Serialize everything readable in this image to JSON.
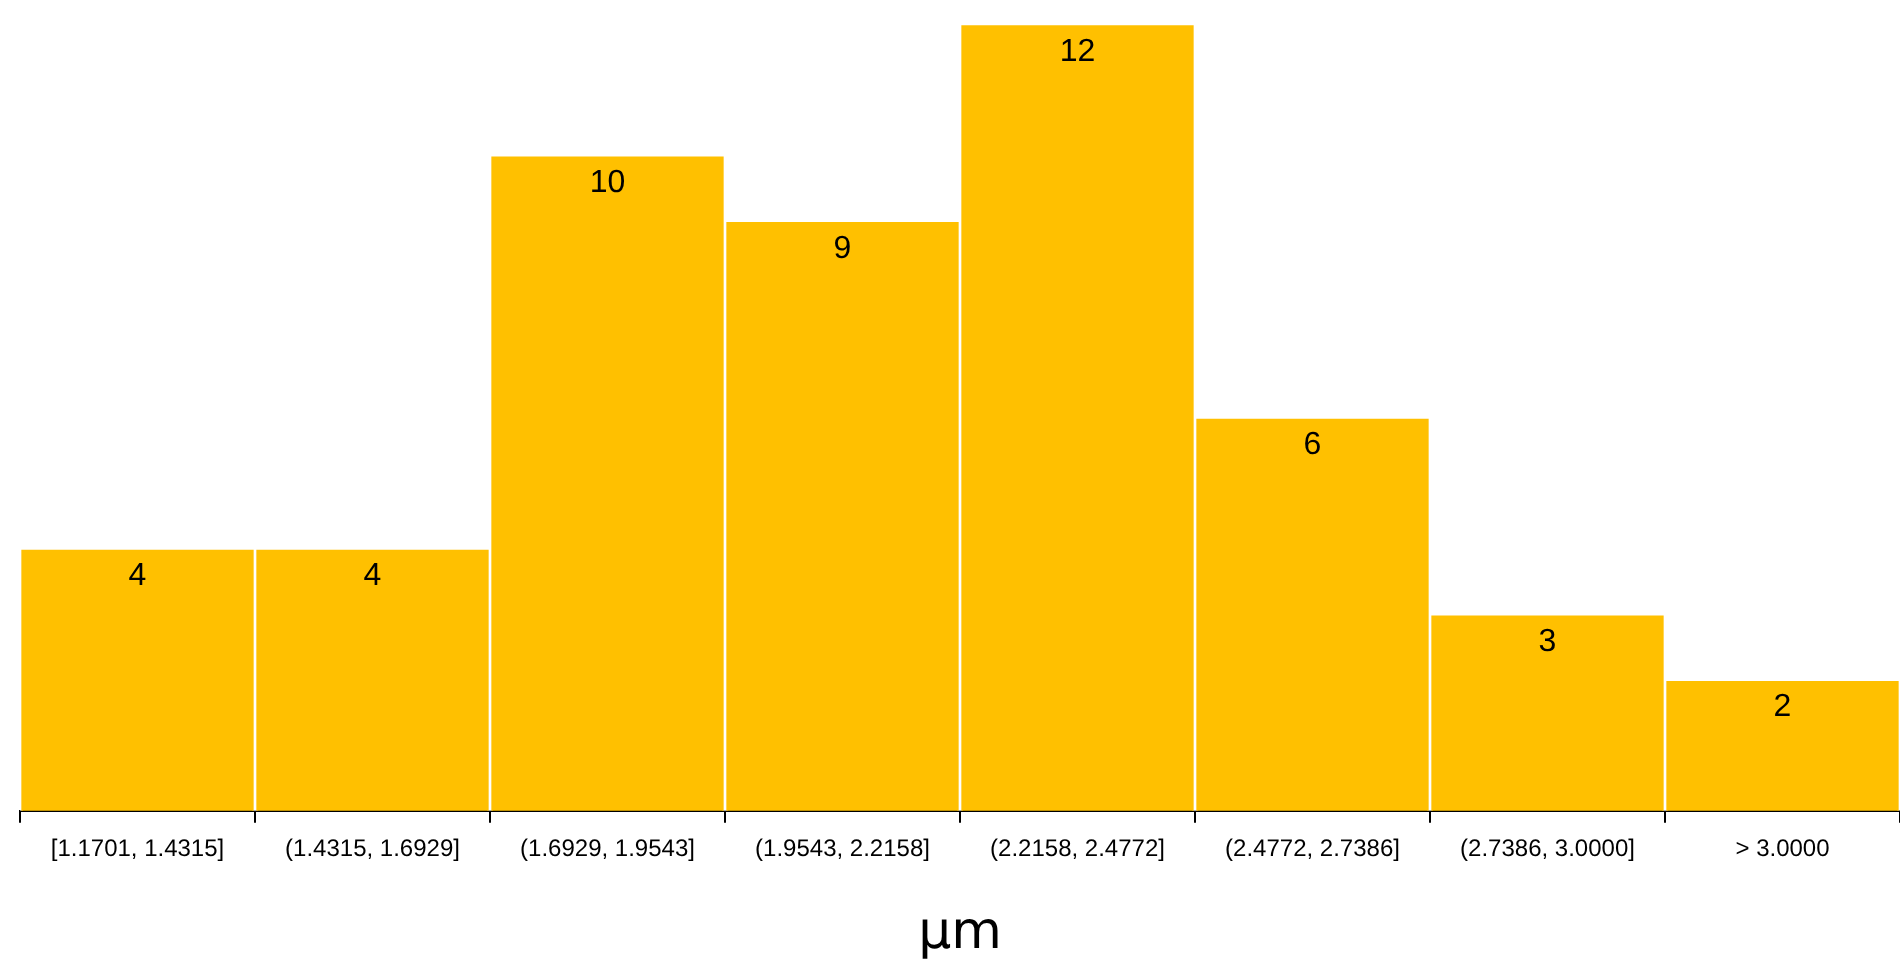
{
  "chart_data": {
    "type": "bar",
    "xlabel": "µm",
    "categories": [
      "[1.1701, 1.4315]",
      "(1.4315, 1.6929]",
      "(1.6929, 1.9543]",
      "(1.9543, 2.2158]",
      "(2.2158, 2.4772]",
      "(2.4772, 2.7386]",
      "(2.7386, 3.0000]",
      "> 3.0000"
    ],
    "values": [
      4,
      4,
      10,
      9,
      12,
      6,
      3,
      2
    ],
    "color": "#ffc000",
    "data_labels": true,
    "grid": false,
    "legend": false
  }
}
